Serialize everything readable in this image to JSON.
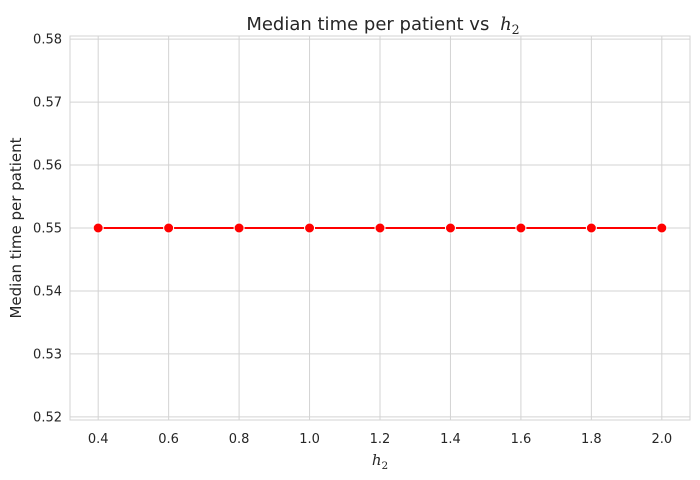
{
  "chart_data": {
    "type": "line",
    "title": "Median time per patient vs",
    "title_symbol": "h",
    "title_symbol_subscript": "2",
    "xlabel_symbol": "h",
    "xlabel_symbol_subscript": "2",
    "ylabel": "Median time per patient",
    "x": [
      0.4,
      0.6,
      0.8,
      1.0,
      1.2,
      1.4,
      1.6,
      1.8,
      2.0
    ],
    "series": [
      {
        "values": [
          0.55,
          0.55,
          0.55,
          0.55,
          0.55,
          0.55,
          0.55,
          0.55,
          0.55
        ],
        "color": "#ff0000",
        "marker": "circle"
      }
    ],
    "xlim": [
      0.32,
      2.08
    ],
    "ylim": [
      0.5195,
      0.5805
    ],
    "x_ticks": [
      0.4,
      0.6,
      0.8,
      1.0,
      1.2,
      1.4,
      1.6,
      1.8,
      2.0
    ],
    "x_tick_labels": [
      "0.4",
      "0.6",
      "0.8",
      "1.0",
      "1.2",
      "1.4",
      "1.6",
      "1.8",
      "2.0"
    ],
    "y_ticks": [
      0.52,
      0.53,
      0.54,
      0.55,
      0.56,
      0.57,
      0.58
    ],
    "y_tick_labels": [
      "0.52",
      "0.53",
      "0.54",
      "0.55",
      "0.56",
      "0.57",
      "0.58"
    ],
    "grid": true,
    "grid_color": "#d3d3d3",
    "line_color": "#ff0000"
  }
}
